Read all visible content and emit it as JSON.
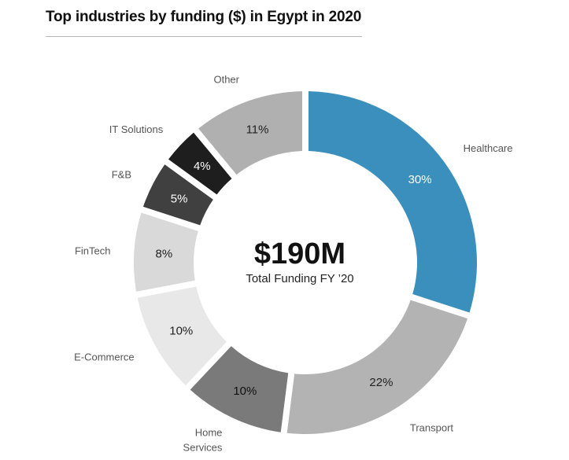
{
  "chart_data": {
    "type": "pie",
    "variant": "donut",
    "title": "Top industries by funding ($) in Egypt in 2020",
    "center_value": "$190M",
    "center_caption": "Total Funding FY ’20",
    "slices": [
      {
        "name": "Healthcare",
        "value": 30,
        "label": "30%",
        "color": "#3a8fbd",
        "text_color": "#ffffff"
      },
      {
        "name": "Transport",
        "value": 22,
        "label": "22%",
        "color": "#b3b3b3",
        "text_color": "#222222"
      },
      {
        "name": "Home Services",
        "value": 10,
        "label": "10%",
        "color": "#7a7a7a",
        "text_color": "#111111"
      },
      {
        "name": "E-Commerce",
        "value": 10,
        "label": "10%",
        "color": "#e8e8e8",
        "text_color": "#222222"
      },
      {
        "name": "FinTech",
        "value": 8,
        "label": "8%",
        "color": "#d9d9d9",
        "text_color": "#222222"
      },
      {
        "name": "F&B",
        "value": 5,
        "label": "5%",
        "color": "#404040",
        "text_color": "#ffffff"
      },
      {
        "name": "IT Solutions",
        "value": 4,
        "label": "4%",
        "color": "#1e1e1e",
        "text_color": "#ffffff"
      },
      {
        "name": "Other",
        "value": 11,
        "label": "11%",
        "color": "#b0b0b0",
        "text_color": "#222222"
      }
    ]
  }
}
